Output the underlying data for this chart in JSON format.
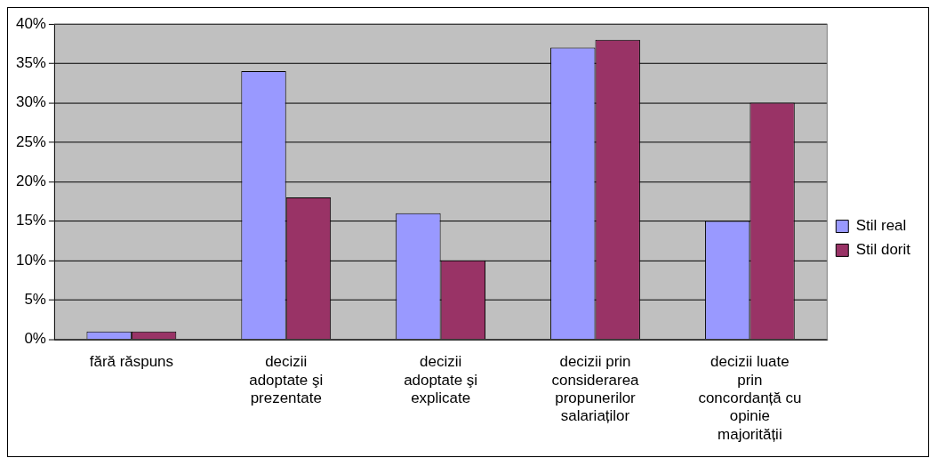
{
  "chart_data": {
    "type": "bar",
    "categories": [
      "fără răspuns",
      "decizii adoptate şi prezentate",
      "decizii adoptate şi explicate",
      "decizii prin considerarea propunerilor salariaților",
      "decizii luate prin concordanță cu opinie majorității"
    ],
    "series": [
      {
        "name": "Stil real",
        "color": "#9999ff",
        "values": [
          1,
          34,
          16,
          37,
          15
        ]
      },
      {
        "name": "Stil dorit",
        "color": "#993366",
        "values": [
          1,
          18,
          10,
          38,
          30
        ]
      }
    ],
    "ylim": [
      0,
      40
    ],
    "yticks": [
      {
        "value": 0,
        "label": "0%"
      },
      {
        "value": 5,
        "label": "5%"
      },
      {
        "value": 10,
        "label": "10%"
      },
      {
        "value": 15,
        "label": "15%"
      },
      {
        "value": 20,
        "label": "20%"
      },
      {
        "value": 25,
        "label": "25%"
      },
      {
        "value": 30,
        "label": "30%"
      },
      {
        "value": 35,
        "label": "35%"
      },
      {
        "value": 40,
        "label": "40%"
      }
    ],
    "grid": "y",
    "legend": "right"
  }
}
